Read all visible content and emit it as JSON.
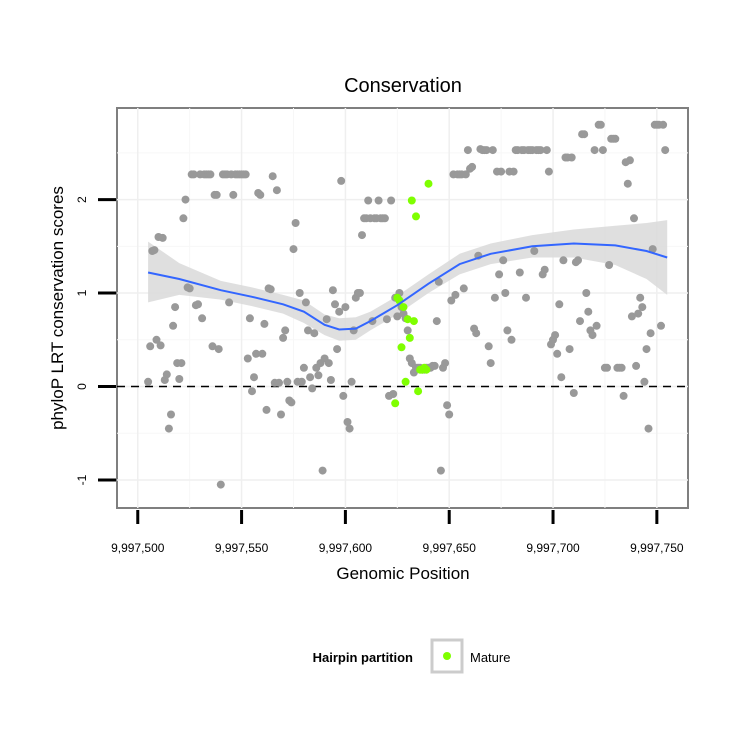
{
  "chart_data": {
    "type": "scatter",
    "title": "Conservation",
    "xlabel": "Genomic Position",
    "ylabel": "phyloP LRT conservation scores",
    "xlim": [
      9997490,
      9997765
    ],
    "ylim": [
      -1.3,
      2.98
    ],
    "x_ticks": [
      9997500,
      9997550,
      9997600,
      9997650,
      9997700,
      9997750
    ],
    "x_tick_labels": [
      "9,997,500",
      "9,997,550",
      "9,997,600",
      "9,997,650",
      "9,997,700",
      "9,997,750"
    ],
    "y_ticks": [
      -1,
      0,
      1,
      2
    ],
    "y_tick_labels": [
      "-1",
      "0",
      "1",
      "2"
    ],
    "grid": true,
    "reference_line": {
      "y": 0,
      "style": "dashed"
    },
    "legend": {
      "title": "Hairpin partition",
      "placement": "bottom",
      "entries": [
        {
          "label": "Mature",
          "color": "#7fff00"
        }
      ]
    },
    "colors": {
      "background_points": "#999999",
      "mature_points": "#7fff00",
      "smooth_line": "#3366ff",
      "ribbon": "#d3d3d3"
    },
    "series": [
      {
        "color": "#999999",
        "points": [
          [
            9997505,
            0.05
          ],
          [
            9997506,
            0.43
          ],
          [
            9997507,
            1.45
          ],
          [
            9997508,
            1.46
          ],
          [
            9997509,
            0.5
          ],
          [
            9997510,
            1.6
          ],
          [
            9997511,
            0.44
          ],
          [
            9997512,
            1.59
          ],
          [
            9997513,
            0.07
          ],
          [
            9997514,
            0.13
          ],
          [
            9997515,
            -0.45
          ],
          [
            9997516,
            -0.3
          ],
          [
            9997517,
            0.65
          ],
          [
            9997518,
            0.85
          ],
          [
            9997519,
            0.25
          ],
          [
            9997520,
            0.08
          ],
          [
            9997521,
            0.25
          ],
          [
            9997522,
            1.8
          ],
          [
            9997523,
            2.0
          ],
          [
            9997524,
            1.06
          ],
          [
            9997525,
            1.05
          ],
          [
            9997526,
            2.27
          ],
          [
            9997527,
            2.27
          ],
          [
            9997528,
            0.87
          ],
          [
            9997529,
            0.88
          ],
          [
            9997530,
            2.27
          ],
          [
            9997531,
            0.73
          ],
          [
            9997532,
            2.27
          ],
          [
            9997533,
            2.27
          ],
          [
            9997534,
            2.27
          ],
          [
            9997535,
            2.27
          ],
          [
            9997536,
            0.43
          ],
          [
            9997537,
            2.05
          ],
          [
            9997538,
            2.05
          ],
          [
            9997539,
            0.4
          ],
          [
            9997540,
            -1.05
          ],
          [
            9997541,
            2.27
          ],
          [
            9997542,
            2.27
          ],
          [
            9997543,
            2.27
          ],
          [
            9997544,
            0.9
          ],
          [
            9997545,
            2.27
          ],
          [
            9997546,
            2.05
          ],
          [
            9997547,
            2.27
          ],
          [
            9997548,
            2.27
          ],
          [
            9997549,
            2.27
          ],
          [
            9997550,
            2.27
          ],
          [
            9997551,
            2.27
          ],
          [
            9997552,
            2.27
          ],
          [
            9997553,
            0.3
          ],
          [
            9997554,
            0.73
          ],
          [
            9997555,
            -0.05
          ],
          [
            9997556,
            0.1
          ],
          [
            9997557,
            0.35
          ],
          [
            9997558,
            2.07
          ],
          [
            9997559,
            2.05
          ],
          [
            9997560,
            0.35
          ],
          [
            9997561,
            0.67
          ],
          [
            9997562,
            -0.25
          ],
          [
            9997563,
            1.05
          ],
          [
            9997564,
            1.04
          ],
          [
            9997565,
            2.25
          ],
          [
            9997566,
            0.04
          ],
          [
            9997567,
            2.1
          ],
          [
            9997568,
            0.04
          ],
          [
            9997569,
            -0.3
          ],
          [
            9997570,
            0.52
          ],
          [
            9997571,
            0.6
          ],
          [
            9997572,
            0.05
          ],
          [
            9997573,
            -0.15
          ],
          [
            9997574,
            -0.17
          ],
          [
            9997575,
            1.47
          ],
          [
            9997576,
            1.75
          ],
          [
            9997577,
            0.05
          ],
          [
            9997578,
            1.0
          ],
          [
            9997579,
            0.05
          ],
          [
            9997580,
            0.2
          ],
          [
            9997581,
            0.9
          ],
          [
            9997582,
            0.6
          ],
          [
            9997583,
            0.1
          ],
          [
            9997584,
            -0.02
          ],
          [
            9997585,
            0.57
          ],
          [
            9997586,
            0.2
          ],
          [
            9997587,
            0.12
          ],
          [
            9997588,
            0.25
          ],
          [
            9997589,
            -0.9
          ],
          [
            9997590,
            0.3
          ],
          [
            9997591,
            0.72
          ],
          [
            9997592,
            0.25
          ],
          [
            9997593,
            0.07
          ],
          [
            9997594,
            1.03
          ],
          [
            9997595,
            0.88
          ],
          [
            9997596,
            0.4
          ],
          [
            9997597,
            0.8
          ],
          [
            9997598,
            2.2
          ],
          [
            9997599,
            -0.1
          ],
          [
            9997600,
            0.85
          ],
          [
            9997601,
            -0.38
          ],
          [
            9997602,
            -0.45
          ],
          [
            9997603,
            0.05
          ],
          [
            9997604,
            0.6
          ],
          [
            9997605,
            0.95
          ],
          [
            9997606,
            1.0
          ],
          [
            9997607,
            1.0
          ],
          [
            9997608,
            1.62
          ],
          [
            9997609,
            1.8
          ],
          [
            9997610,
            1.8
          ],
          [
            9997611,
            1.99
          ],
          [
            9997612,
            1.8
          ],
          [
            9997613,
            0.7
          ],
          [
            9997614,
            1.8
          ],
          [
            9997615,
            1.8
          ],
          [
            9997616,
            1.99
          ],
          [
            9997617,
            1.8
          ],
          [
            9997618,
            1.8
          ],
          [
            9997619,
            1.8
          ],
          [
            9997620,
            0.72
          ],
          [
            9997621,
            -0.1
          ],
          [
            9997622,
            1.99
          ],
          [
            9997623,
            -0.08
          ],
          [
            9997624,
            0.95
          ],
          [
            9997625,
            0.75
          ],
          [
            9997626,
            1.0
          ],
          [
            9997627,
            0.85
          ],
          [
            9997628,
            0.78
          ],
          [
            9997629,
            0.73
          ],
          [
            9997630,
            0.6
          ],
          [
            9997631,
            0.3
          ],
          [
            9997632,
            0.25
          ],
          [
            9997633,
            0.15
          ],
          [
            9997634,
            0.2
          ],
          [
            9997635,
            0.2
          ],
          [
            9997636,
            0.2
          ],
          [
            9997637,
            0.18
          ],
          [
            9997638,
            0.18
          ],
          [
            9997639,
            0.2
          ],
          [
            9997640,
            0.2
          ],
          [
            9997641,
            0.2
          ],
          [
            9997642,
            0.22
          ],
          [
            9997643,
            0.22
          ],
          [
            9997644,
            0.7
          ],
          [
            9997645,
            1.12
          ],
          [
            9997646,
            -0.9
          ],
          [
            9997647,
            0.2
          ],
          [
            9997648,
            0.25
          ],
          [
            9997649,
            -0.2
          ],
          [
            9997650,
            -0.3
          ],
          [
            9997651,
            0.92
          ],
          [
            9997652,
            2.27
          ],
          [
            9997653,
            0.98
          ],
          [
            9997654,
            2.27
          ],
          [
            9997655,
            2.27
          ],
          [
            9997656,
            2.27
          ],
          [
            9997657,
            1.05
          ],
          [
            9997658,
            2.27
          ],
          [
            9997659,
            2.53
          ],
          [
            9997660,
            2.33
          ],
          [
            9997661,
            2.35
          ],
          [
            9997662,
            0.62
          ],
          [
            9997663,
            0.57
          ],
          [
            9997664,
            1.4
          ],
          [
            9997665,
            2.54
          ],
          [
            9997666,
            2.53
          ],
          [
            9997667,
            2.53
          ],
          [
            9997668,
            2.53
          ],
          [
            9997669,
            0.43
          ],
          [
            9997670,
            0.25
          ],
          [
            9997671,
            2.53
          ],
          [
            9997672,
            0.95
          ],
          [
            9997673,
            2.3
          ],
          [
            9997674,
            1.2
          ],
          [
            9997675,
            2.3
          ],
          [
            9997676,
            1.35
          ],
          [
            9997677,
            1.0
          ],
          [
            9997678,
            0.6
          ],
          [
            9997679,
            2.3
          ],
          [
            9997680,
            0.5
          ],
          [
            9997681,
            2.3
          ],
          [
            9997682,
            2.53
          ],
          [
            9997683,
            2.53
          ],
          [
            9997684,
            1.22
          ],
          [
            9997685,
            2.53
          ],
          [
            9997686,
            2.53
          ],
          [
            9997687,
            0.95
          ],
          [
            9997688,
            2.53
          ],
          [
            9997689,
            2.53
          ],
          [
            9997690,
            2.53
          ],
          [
            9997691,
            1.45
          ],
          [
            9997692,
            2.53
          ],
          [
            9997693,
            2.53
          ],
          [
            9997694,
            2.53
          ],
          [
            9997695,
            1.2
          ],
          [
            9997696,
            1.25
          ],
          [
            9997697,
            2.53
          ],
          [
            9997698,
            2.3
          ],
          [
            9997699,
            0.45
          ],
          [
            9997700,
            0.5
          ],
          [
            9997701,
            0.55
          ],
          [
            9997702,
            0.35
          ],
          [
            9997703,
            0.88
          ],
          [
            9997704,
            0.1
          ],
          [
            9997705,
            1.35
          ],
          [
            9997706,
            2.45
          ],
          [
            9997707,
            2.45
          ],
          [
            9997708,
            0.4
          ],
          [
            9997709,
            2.45
          ],
          [
            9997710,
            -0.07
          ],
          [
            9997711,
            1.33
          ],
          [
            9997712,
            1.35
          ],
          [
            9997713,
            0.7
          ],
          [
            9997714,
            2.7
          ],
          [
            9997715,
            2.7
          ],
          [
            9997716,
            1.0
          ],
          [
            9997717,
            0.8
          ],
          [
            9997718,
            0.6
          ],
          [
            9997719,
            0.55
          ],
          [
            9997720,
            2.53
          ],
          [
            9997721,
            0.65
          ],
          [
            9997722,
            2.8
          ],
          [
            9997723,
            2.8
          ],
          [
            9997724,
            2.53
          ],
          [
            9997725,
            0.2
          ],
          [
            9997726,
            0.2
          ],
          [
            9997727,
            1.3
          ],
          [
            9997728,
            2.65
          ],
          [
            9997729,
            2.65
          ],
          [
            9997730,
            2.65
          ],
          [
            9997731,
            0.2
          ],
          [
            9997732,
            0.2
          ],
          [
            9997733,
            0.2
          ],
          [
            9997734,
            -0.1
          ],
          [
            9997735,
            2.4
          ],
          [
            9997736,
            2.17
          ],
          [
            9997737,
            2.42
          ],
          [
            9997738,
            0.75
          ],
          [
            9997739,
            1.8
          ],
          [
            9997740,
            0.22
          ],
          [
            9997741,
            0.78
          ],
          [
            9997742,
            0.95
          ],
          [
            9997743,
            0.85
          ],
          [
            9997744,
            0.05
          ],
          [
            9997745,
            0.4
          ],
          [
            9997746,
            -0.45
          ],
          [
            9997747,
            0.57
          ],
          [
            9997748,
            1.47
          ],
          [
            9997749,
            2.8
          ],
          [
            9997750,
            2.8
          ],
          [
            9997751,
            2.8
          ],
          [
            9997752,
            0.65
          ],
          [
            9997753,
            2.8
          ],
          [
            9997754,
            2.53
          ]
        ]
      },
      {
        "name": "Mature",
        "color": "#7fff00",
        "points": [
          [
            9997624,
            -0.18
          ],
          [
            9997625,
            0.95
          ],
          [
            9997626,
            0.92
          ],
          [
            9997627,
            0.42
          ],
          [
            9997628,
            0.85
          ],
          [
            9997629,
            0.05
          ],
          [
            9997630,
            0.72
          ],
          [
            9997631,
            0.52
          ],
          [
            9997632,
            1.99
          ],
          [
            9997633,
            0.7
          ],
          [
            9997634,
            1.82
          ],
          [
            9997635,
            -0.05
          ],
          [
            9997636,
            0.18
          ],
          [
            9997637,
            0.18
          ],
          [
            9997638,
            0.2
          ],
          [
            9997639,
            0.18
          ],
          [
            9997640,
            2.17
          ]
        ]
      }
    ],
    "smooth": {
      "x": [
        9997505,
        9997520,
        9997540,
        9997555,
        9997570,
        9997580,
        9997590,
        9997597,
        9997605,
        9997612,
        9997625,
        9997640,
        9997655,
        9997670,
        9997690,
        9997710,
        9997730,
        9997745,
        9997755
      ],
      "y": [
        1.22,
        1.15,
        1.03,
        0.96,
        0.88,
        0.8,
        0.66,
        0.61,
        0.62,
        0.7,
        0.87,
        1.1,
        1.31,
        1.42,
        1.5,
        1.53,
        1.51,
        1.45,
        1.38
      ],
      "lower": [
        0.9,
        0.98,
        0.93,
        0.86,
        0.78,
        0.68,
        0.55,
        0.49,
        0.5,
        0.6,
        0.77,
        1.0,
        1.2,
        1.31,
        1.38,
        1.38,
        1.3,
        1.15,
        0.98
      ],
      "upper": [
        1.55,
        1.32,
        1.13,
        1.06,
        0.98,
        0.92,
        0.77,
        0.73,
        0.74,
        0.8,
        0.97,
        1.2,
        1.42,
        1.53,
        1.62,
        1.68,
        1.72,
        1.75,
        1.78
      ]
    }
  }
}
